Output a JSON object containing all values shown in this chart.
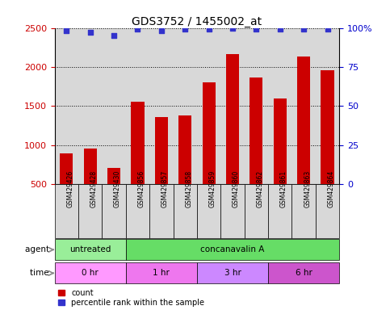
{
  "title": "GDS3752 / 1455002_at",
  "samples": [
    "GSM429426",
    "GSM429428",
    "GSM429430",
    "GSM429856",
    "GSM429857",
    "GSM429858",
    "GSM429859",
    "GSM429860",
    "GSM429862",
    "GSM429861",
    "GSM429863",
    "GSM429864"
  ],
  "counts": [
    890,
    960,
    710,
    1560,
    1360,
    1380,
    1800,
    2170,
    1870,
    1600,
    2130,
    1960
  ],
  "percentile_ranks": [
    98,
    97,
    95,
    99,
    98,
    99,
    99,
    100,
    99,
    99,
    99,
    99
  ],
  "ylim_left": [
    500,
    2500
  ],
  "ylim_right": [
    0,
    100
  ],
  "yticks_left": [
    500,
    1000,
    1500,
    2000,
    2500
  ],
  "yticks_right": [
    0,
    25,
    50,
    75,
    100
  ],
  "bar_color": "#cc0000",
  "dot_color": "#3333cc",
  "sample_bg_color": "#d8d8d8",
  "agent_groups": [
    {
      "label": "untreated",
      "start": 0,
      "end": 2,
      "color": "#99ee99"
    },
    {
      "label": "concanavalin A",
      "start": 3,
      "end": 11,
      "color": "#66dd66"
    }
  ],
  "time_groups": [
    {
      "label": "0 hr",
      "start": 0,
      "end": 2,
      "color": "#ff99ff"
    },
    {
      "label": "1 hr",
      "start": 3,
      "end": 5,
      "color": "#ee77ee"
    },
    {
      "label": "3 hr",
      "start": 6,
      "end": 8,
      "color": "#dd88ff"
    },
    {
      "label": "6 hr",
      "start": 9,
      "end": 11,
      "color": "#cc55cc"
    }
  ],
  "tick_label_color_left": "#cc0000",
  "tick_label_color_right": "#0000cc",
  "label_agent": "agent",
  "label_time": "time",
  "legend_count": "count",
  "legend_percentile": "percentile rank within the sample"
}
